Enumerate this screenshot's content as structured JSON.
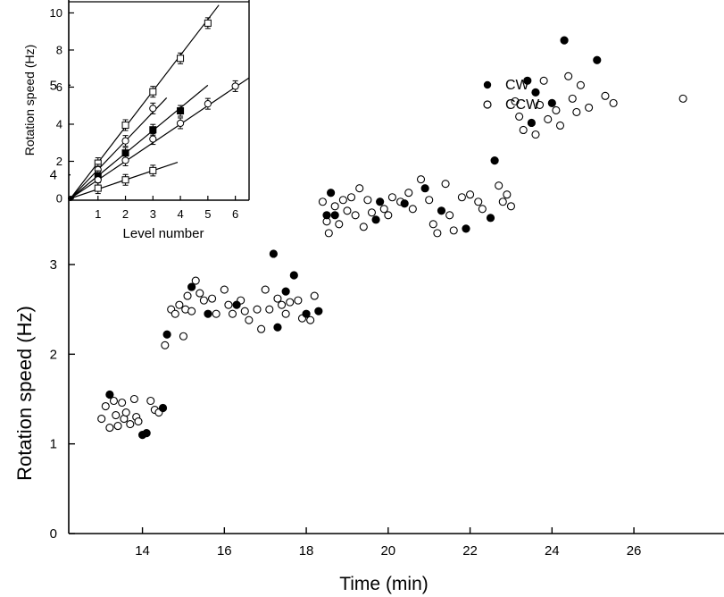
{
  "chart_data": [
    {
      "type": "scatter",
      "xlabel": "Time (min)",
      "ylabel": "Rotation speed (Hz)",
      "xlim": [
        12.2,
        28.2
      ],
      "ylim": [
        0,
        5.95
      ],
      "x_ticks": [
        14,
        16,
        18,
        20,
        22,
        24,
        26
      ],
      "y_ticks": [
        0,
        1,
        2,
        3,
        4,
        5
      ],
      "legend": {
        "placement": "top-right"
      },
      "series": [
        {
          "name": "CW",
          "marker": "filled-circle",
          "points": [
            [
              13.2,
              1.55
            ],
            [
              14.0,
              1.1
            ],
            [
              14.1,
              1.12
            ],
            [
              14.5,
              1.4
            ],
            [
              14.6,
              2.22
            ],
            [
              15.2,
              2.75
            ],
            [
              15.6,
              2.45
            ],
            [
              16.3,
              2.55
            ],
            [
              17.2,
              3.12
            ],
            [
              17.3,
              2.3
            ],
            [
              17.5,
              2.7
            ],
            [
              17.7,
              2.88
            ],
            [
              18.0,
              2.45
            ],
            [
              18.3,
              2.48
            ],
            [
              18.5,
              3.55
            ],
            [
              18.6,
              3.8
            ],
            [
              18.7,
              3.55
            ],
            [
              19.7,
              3.5
            ],
            [
              19.8,
              3.7
            ],
            [
              20.4,
              3.68
            ],
            [
              20.9,
              3.85
            ],
            [
              21.3,
              3.6
            ],
            [
              21.9,
              3.4
            ],
            [
              22.5,
              3.52
            ],
            [
              22.6,
              4.16
            ],
            [
              23.4,
              5.05
            ],
            [
              23.5,
              4.58
            ],
            [
              23.6,
              4.92
            ],
            [
              24.0,
              4.8
            ],
            [
              24.3,
              5.5
            ],
            [
              25.1,
              5.28
            ]
          ]
        },
        {
          "name": "CCW",
          "marker": "open-circle",
          "points": [
            [
              13.0,
              1.28
            ],
            [
              13.1,
              1.42
            ],
            [
              13.2,
              1.18
            ],
            [
              13.3,
              1.48
            ],
            [
              13.35,
              1.32
            ],
            [
              13.4,
              1.2
            ],
            [
              13.5,
              1.46
            ],
            [
              13.55,
              1.28
            ],
            [
              13.6,
              1.35
            ],
            [
              13.7,
              1.22
            ],
            [
              13.8,
              1.5
            ],
            [
              13.85,
              1.3
            ],
            [
              13.9,
              1.25
            ],
            [
              14.2,
              1.48
            ],
            [
              14.3,
              1.38
            ],
            [
              14.4,
              1.35
            ],
            [
              14.55,
              2.1
            ],
            [
              14.7,
              2.5
            ],
            [
              14.8,
              2.45
            ],
            [
              14.9,
              2.55
            ],
            [
              15.0,
              2.2
            ],
            [
              15.05,
              2.5
            ],
            [
              15.1,
              2.65
            ],
            [
              15.2,
              2.48
            ],
            [
              15.3,
              2.82
            ],
            [
              15.4,
              2.68
            ],
            [
              15.5,
              2.6
            ],
            [
              15.7,
              2.62
            ],
            [
              15.8,
              2.45
            ],
            [
              16.0,
              2.72
            ],
            [
              16.1,
              2.55
            ],
            [
              16.2,
              2.45
            ],
            [
              16.4,
              2.6
            ],
            [
              16.5,
              2.48
            ],
            [
              16.6,
              2.38
            ],
            [
              16.8,
              2.5
            ],
            [
              16.9,
              2.28
            ],
            [
              17.0,
              2.72
            ],
            [
              17.1,
              2.5
            ],
            [
              17.3,
              2.62
            ],
            [
              17.4,
              2.55
            ],
            [
              17.5,
              2.45
            ],
            [
              17.6,
              2.58
            ],
            [
              17.8,
              2.6
            ],
            [
              17.9,
              2.4
            ],
            [
              18.1,
              2.38
            ],
            [
              18.2,
              2.65
            ],
            [
              18.4,
              3.7
            ],
            [
              18.5,
              3.48
            ],
            [
              18.55,
              3.35
            ],
            [
              18.7,
              3.65
            ],
            [
              18.8,
              3.45
            ],
            [
              18.9,
              3.72
            ],
            [
              19.0,
              3.6
            ],
            [
              19.1,
              3.75
            ],
            [
              19.2,
              3.55
            ],
            [
              19.3,
              3.85
            ],
            [
              19.4,
              3.42
            ],
            [
              19.5,
              3.72
            ],
            [
              19.6,
              3.58
            ],
            [
              19.9,
              3.62
            ],
            [
              20.0,
              3.55
            ],
            [
              20.1,
              3.75
            ],
            [
              20.3,
              3.7
            ],
            [
              20.5,
              3.8
            ],
            [
              20.6,
              3.62
            ],
            [
              20.8,
              3.95
            ],
            [
              21.0,
              3.72
            ],
            [
              21.1,
              3.45
            ],
            [
              21.2,
              3.35
            ],
            [
              21.4,
              3.9
            ],
            [
              21.5,
              3.55
            ],
            [
              21.6,
              3.38
            ],
            [
              21.8,
              3.75
            ],
            [
              22.0,
              3.78
            ],
            [
              22.2,
              3.7
            ],
            [
              22.3,
              3.62
            ],
            [
              22.7,
              3.88
            ],
            [
              22.8,
              3.7
            ],
            [
              22.9,
              3.78
            ],
            [
              23.0,
              3.65
            ],
            [
              23.1,
              4.82
            ],
            [
              23.2,
              4.65
            ],
            [
              23.3,
              4.5
            ],
            [
              23.6,
              4.45
            ],
            [
              23.7,
              4.78
            ],
            [
              23.8,
              5.05
            ],
            [
              23.9,
              4.62
            ],
            [
              24.1,
              4.72
            ],
            [
              24.2,
              4.55
            ],
            [
              24.4,
              5.1
            ],
            [
              24.5,
              4.85
            ],
            [
              24.6,
              4.7
            ],
            [
              24.7,
              5.0
            ],
            [
              24.9,
              4.75
            ],
            [
              25.3,
              4.88
            ],
            [
              25.5,
              4.8
            ],
            [
              27.2,
              4.85
            ]
          ]
        }
      ]
    },
    {
      "type": "line",
      "xlabel": "Level number",
      "ylabel": "Rotation speed (Hz)",
      "xlim": [
        0,
        6.5
      ],
      "ylim": [
        0,
        10.6
      ],
      "x_ticks": [
        1,
        2,
        3,
        4,
        5,
        6
      ],
      "y_ticks": [
        0,
        2,
        4,
        6,
        8,
        10
      ],
      "series": [
        {
          "slope": 1.93,
          "line_x_max": 5.4,
          "points": [
            [
              1,
              1.9
            ],
            [
              2,
              3.95
            ],
            [
              3,
              5.75
            ],
            [
              4,
              7.55
            ],
            [
              5,
              9.45
            ]
          ],
          "marker": "open-square"
        },
        {
          "slope": 1.55,
          "line_x_max": 3.5,
          "points": [
            [
              1,
              1.55
            ],
            [
              2,
              3.1
            ],
            [
              3,
              4.85
            ]
          ],
          "marker": "open-circle"
        },
        {
          "slope": 1.22,
          "line_x_max": 5.0,
          "points": [
            [
              1,
              1.2
            ],
            [
              2,
              2.45
            ],
            [
              3,
              3.7
            ],
            [
              4,
              4.72
            ]
          ],
          "marker": "filled-square"
        },
        {
          "slope": 1.0,
          "line_x_max": 6.5,
          "points": [
            [
              1,
              1.0
            ],
            [
              2,
              2.05
            ],
            [
              3,
              3.2
            ],
            [
              4,
              4.05
            ],
            [
              5,
              5.1
            ],
            [
              6,
              6.05
            ]
          ],
          "marker": "open-circle"
        },
        {
          "slope": 0.5,
          "line_x_max": 3.9,
          "points": [
            [
              1,
              0.55
            ],
            [
              2,
              1.0
            ],
            [
              3,
              1.5
            ]
          ],
          "marker": "open-square"
        }
      ]
    }
  ]
}
